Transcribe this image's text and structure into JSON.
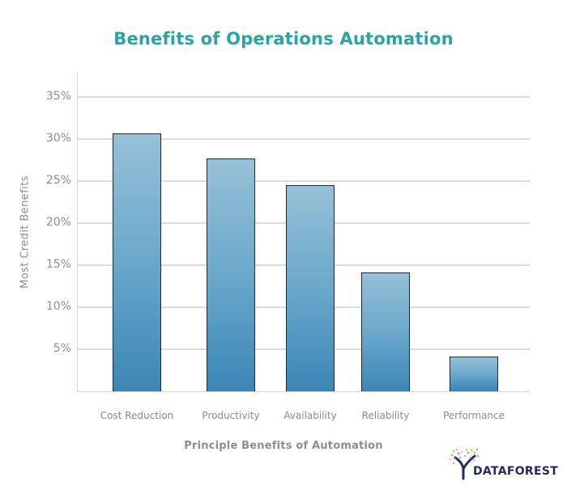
{
  "chart_data": {
    "type": "bar",
    "title": "Benefits of Operations Automation",
    "xlabel": "Principle Benefits of Automation",
    "ylabel": "Most Credit Benefits",
    "categories": [
      "Cost Reduction",
      "Productivity",
      "Availability",
      "Reliability",
      "Performance"
    ],
    "values": [
      30.7,
      27.7,
      24.5,
      14.1,
      4.1
    ],
    "unit": "%",
    "ylim": [
      0,
      35
    ],
    "yticks": [
      "5%",
      "10%",
      "15%",
      "20%",
      "25%",
      "30%",
      "35%"
    ],
    "grid": true,
    "legend": null,
    "bar_color_top": "#96c1d7",
    "bar_color_bottom": "#3b86b6",
    "bar_border_color": "#1c2a3c",
    "title_color": "#2aa3a6"
  },
  "branding": {
    "logo_text": "DATAFOREST",
    "logo_icon": "tree-icon"
  }
}
